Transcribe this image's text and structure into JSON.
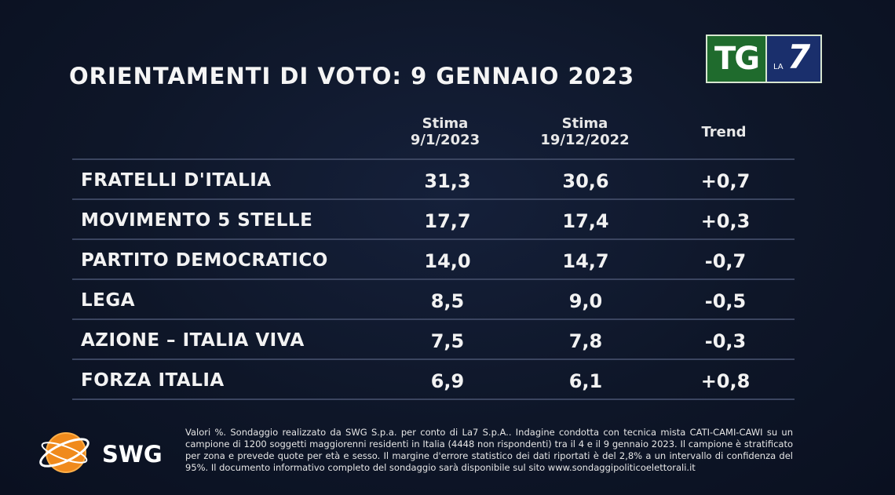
{
  "title": "ORIENTAMENTI DI VOTO: 9 GENNAIO 2023",
  "logo": {
    "tg": "TG",
    "la": "LA",
    "seven": "7"
  },
  "columns": {
    "current": [
      "Stima",
      "9/1/2023"
    ],
    "previous": [
      "Stima",
      "19/12/2022"
    ],
    "trend": "Trend"
  },
  "rows": [
    {
      "party": "FRATELLI D'ITALIA",
      "current": "31,3",
      "previous": "30,6",
      "trend": "+0,7"
    },
    {
      "party": "MOVIMENTO 5 STELLE",
      "current": "17,7",
      "previous": "17,4",
      "trend": "+0,3"
    },
    {
      "party": "PARTITO DEMOCRATICO",
      "current": "14,0",
      "previous": "14,7",
      "trend": "-0,7"
    },
    {
      "party": "LEGA",
      "current": "8,5",
      "previous": "9,0",
      "trend": "-0,5"
    },
    {
      "party": "AZIONE – ITALIA VIVA",
      "current": "7,5",
      "previous": "7,8",
      "trend": "-0,3"
    },
    {
      "party": "FORZA ITALIA",
      "current": "6,9",
      "previous": "6,1",
      "trend": "+0,8"
    }
  ],
  "swg": "SWG",
  "note": "Valori %. Sondaggio realizzato da SWG S.p.a. per conto di La7 S.p.A.. Indagine condotta con tecnica mista CATI-CAMI-CAWI su un campione di 1200 soggetti maggiorenni residenti in Italia (4448 non rispondenti) tra il 4 e il 9 gennaio 2023. Il campione è stratificato per zona e prevede quote per età e sesso. Il margine d'errore statistico dei dati riportati è del 2,8% a un intervallo di confidenza del 95%. Il documento informativo completo del sondaggio sarà disponibile sul sito www.sondaggipoliticoelettorali.it",
  "colors": {
    "background": "#0e1628",
    "tg_green": "#1f6b2d",
    "la7_blue": "#1a2f6c",
    "swg_orange": "#f08a1c"
  }
}
